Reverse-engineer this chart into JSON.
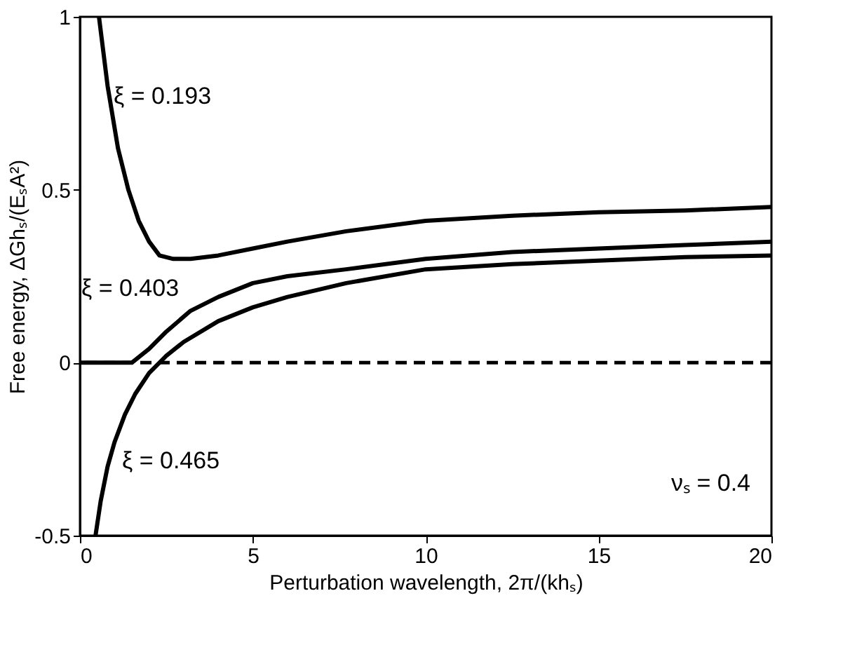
{
  "chart_data": {
    "type": "line",
    "xlabel": "Perturbation wavelength, 2π/(khₛ)",
    "ylabel": "Free energy, ΔGhₛ/(EₛA²)",
    "xlim": [
      0,
      20
    ],
    "ylim": [
      -0.5,
      1
    ],
    "xticks": [
      0,
      5,
      10,
      15,
      20
    ],
    "yticks": [
      -0.5,
      0,
      0.5,
      1
    ],
    "grid": false,
    "line_style": "solid",
    "marker": "none",
    "series": [
      {
        "color": "#000000",
        "x": [
          0.55,
          0.8,
          1.1,
          1.4,
          1.7,
          2.0,
          2.3,
          2.7,
          3.2,
          4,
          5,
          6,
          7.7,
          10,
          12.5,
          15,
          17.5,
          20
        ],
        "values": [
          1.0,
          0.8,
          0.62,
          0.5,
          0.41,
          0.35,
          0.31,
          0.3,
          0.3,
          0.31,
          0.33,
          0.35,
          0.38,
          0.41,
          0.425,
          0.435,
          0.44,
          0.45
        ]
      },
      {
        "color": "#000000",
        "x": [
          0,
          0.5,
          1,
          1.5,
          2,
          2.5,
          3.2,
          4,
          5,
          6,
          7.7,
          10,
          12.5,
          15,
          17.5,
          20
        ],
        "values": [
          0,
          0,
          0,
          0,
          0.04,
          0.09,
          0.15,
          0.19,
          0.23,
          0.25,
          0.27,
          0.3,
          0.32,
          0.33,
          0.34,
          0.35
        ]
      },
      {
        "color": "#000000",
        "x": [
          0.45,
          0.6,
          0.8,
          1,
          1.3,
          1.6,
          2,
          2.5,
          3,
          4,
          5,
          6,
          7.7,
          10,
          12.5,
          15,
          17.5,
          20
        ],
        "values": [
          -0.5,
          -0.4,
          -0.3,
          -0.23,
          -0.15,
          -0.09,
          -0.03,
          0.02,
          0.06,
          0.12,
          0.16,
          0.19,
          0.23,
          0.27,
          0.285,
          0.295,
          0.305,
          0.31
        ]
      }
    ],
    "ref_lines": [
      {
        "axis": "y",
        "value": 0,
        "line_style": "dashed",
        "color": "#000000"
      }
    ],
    "annotations": [
      "ξ = 0.193",
      "ξ = 0.403",
      "ξ = 0.465",
      "νₛ = 0.4"
    ]
  }
}
